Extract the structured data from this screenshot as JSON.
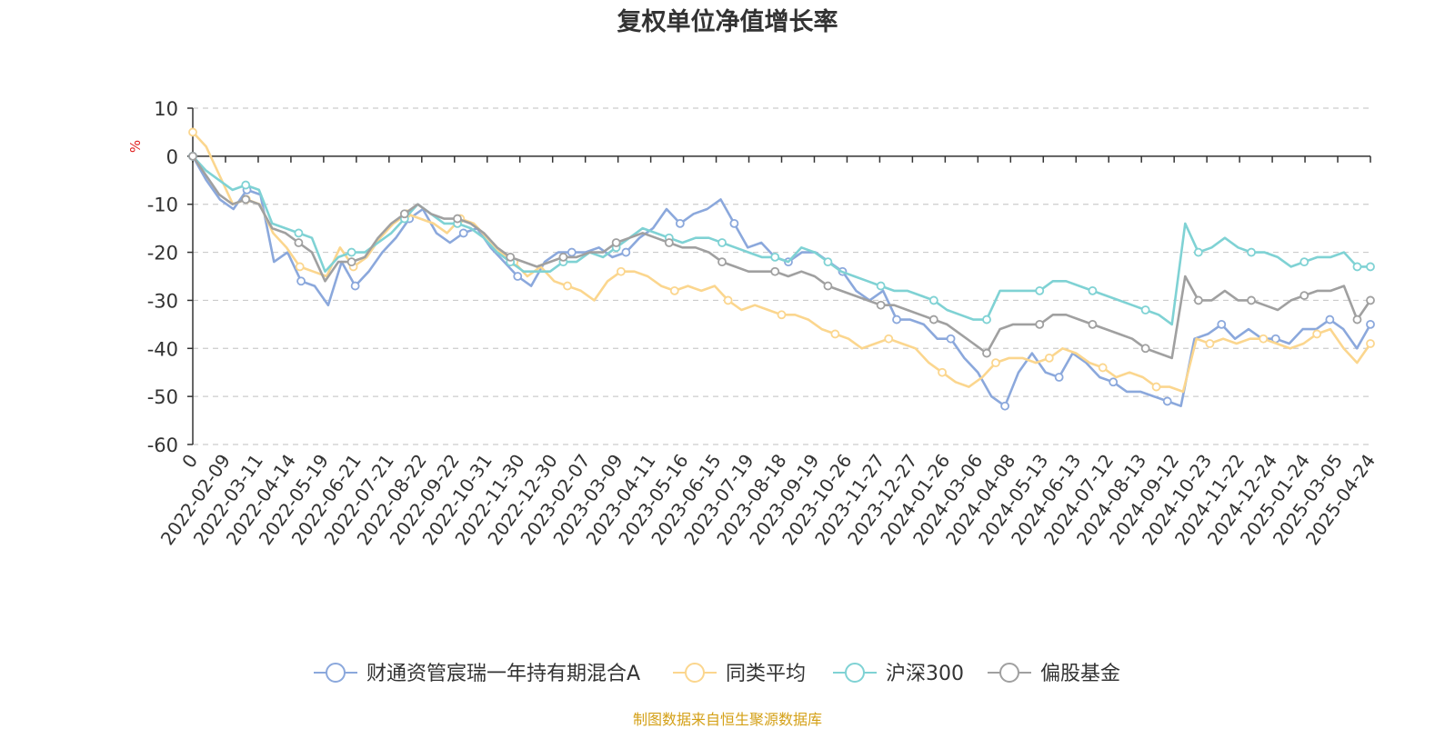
{
  "chart_data": {
    "type": "line",
    "title": "复权单位净值增长率",
    "ylabel": "%",
    "xlabel": "",
    "ylim": [
      -60,
      10
    ],
    "y_ticks": [
      "10",
      "0",
      "-10",
      "-20",
      "-30",
      "-40",
      "-50",
      "-60"
    ],
    "x_tick_labels": [
      "0",
      "2022-02-09",
      "2022-03-11",
      "2022-04-14",
      "2022-05-19",
      "2022-06-21",
      "2022-07-21",
      "2022-08-22",
      "2022-09-22",
      "2022-10-31",
      "2022-11-30",
      "2022-12-30",
      "2023-02-07",
      "2023-03-09",
      "2023-04-11",
      "2023-05-16",
      "2023-06-15",
      "2023-07-19",
      "2023-08-18",
      "2023-09-19",
      "2023-10-26",
      "2023-11-27",
      "2023-12-27",
      "2024-01-26",
      "2024-03-06",
      "2024-04-08",
      "2024-05-13",
      "2024-06-13",
      "2024-07-12",
      "2024-08-13",
      "2024-09-12",
      "2024-10-23",
      "2024-11-22",
      "2024-12-24",
      "2025-01-24",
      "2025-03-05",
      "2025-04-24"
    ],
    "grid": true,
    "legend_position": "bottom",
    "series": [
      {
        "name": "财通资管宸瑞一年持有期混合A",
        "color": "#8ba8dc",
        "values": [
          0,
          -5,
          -9,
          -11,
          -7,
          -8,
          -22,
          -20,
          -26,
          -27,
          -31,
          -22,
          -27,
          -24,
          -20,
          -17,
          -13,
          -11,
          -16,
          -18,
          -16,
          -15,
          -19,
          -22,
          -25,
          -27,
          -22,
          -20,
          -20,
          -20,
          -19,
          -21,
          -20,
          -17,
          -15,
          -11,
          -14,
          -12,
          -11,
          -9,
          -14,
          -19,
          -18,
          -21,
          -22,
          -20,
          -20,
          -22,
          -24,
          -28,
          -30,
          -28,
          -34,
          -34,
          -35,
          -38,
          -38,
          -42,
          -45,
          -50,
          -52,
          -45,
          -41,
          -45,
          -46,
          -41,
          -43,
          -46,
          -47,
          -49,
          -49,
          -50,
          -51,
          -52,
          -38,
          -37,
          -35,
          -38,
          -36,
          -38,
          -38,
          -39,
          -36,
          -36,
          -34,
          -36,
          -40,
          -35
        ]
      },
      {
        "name": "同类平均",
        "color": "#fbd68e",
        "values": [
          5,
          2,
          -4,
          -10,
          -9,
          -10,
          -16,
          -19,
          -23,
          -24,
          -25,
          -19,
          -23,
          -21,
          -17,
          -14,
          -12,
          -13,
          -14,
          -16,
          -13,
          -14,
          -17,
          -20,
          -22,
          -25,
          -23,
          -26,
          -27,
          -28,
          -30,
          -26,
          -24,
          -24,
          -25,
          -27,
          -28,
          -27,
          -28,
          -27,
          -30,
          -32,
          -31,
          -32,
          -33,
          -33,
          -34,
          -36,
          -37,
          -38,
          -40,
          -39,
          -38,
          -39,
          -40,
          -43,
          -45,
          -47,
          -48,
          -46,
          -43,
          -42,
          -42,
          -43,
          -42,
          -40,
          -41,
          -43,
          -44,
          -46,
          -45,
          -46,
          -48,
          -48,
          -49,
          -38,
          -39,
          -38,
          -39,
          -38,
          -38,
          -39,
          -40,
          -39,
          -37,
          -36,
          -40,
          -43,
          -39
        ]
      },
      {
        "name": "沪深300",
        "color": "#7fd2d4",
        "values": [
          0,
          -3,
          -5,
          -7,
          -6,
          -7,
          -14,
          -15,
          -16,
          -17,
          -24,
          -21,
          -20,
          -20,
          -18,
          -16,
          -13,
          -10,
          -12,
          -14,
          -14,
          -15,
          -17,
          -20,
          -22,
          -24,
          -24,
          -24,
          -22,
          -22,
          -20,
          -21,
          -19,
          -17,
          -15,
          -16,
          -17,
          -18,
          -17,
          -17,
          -18,
          -19,
          -20,
          -21,
          -21,
          -22,
          -19,
          -20,
          -22,
          -24,
          -25,
          -26,
          -27,
          -28,
          -28,
          -29,
          -30,
          -32,
          -33,
          -34,
          -34,
          -28,
          -28,
          -28,
          -28,
          -26,
          -26,
          -27,
          -28,
          -29,
          -30,
          -31,
          -32,
          -33,
          -35,
          -14,
          -20,
          -19,
          -17,
          -19,
          -20,
          -20,
          -21,
          -23,
          -22,
          -21,
          -21,
          -20,
          -23,
          -23
        ]
      },
      {
        "name": "偏股基金",
        "color": "#a0a0a0",
        "values": [
          0,
          -4,
          -8,
          -10,
          -9,
          -10,
          -15,
          -16,
          -18,
          -20,
          -26,
          -22,
          -22,
          -21,
          -17,
          -14,
          -12,
          -10,
          -12,
          -13,
          -13,
          -14,
          -16,
          -19,
          -21,
          -22,
          -23,
          -22,
          -21,
          -21,
          -20,
          -20,
          -18,
          -17,
          -16,
          -17,
          -18,
          -19,
          -19,
          -20,
          -22,
          -23,
          -24,
          -24,
          -24,
          -25,
          -24,
          -25,
          -27,
          -28,
          -29,
          -30,
          -31,
          -31,
          -32,
          -33,
          -34,
          -35,
          -37,
          -39,
          -41,
          -36,
          -35,
          -35,
          -35,
          -33,
          -33,
          -34,
          -35,
          -36,
          -37,
          -38,
          -40,
          -41,
          -42,
          -25,
          -30,
          -30,
          -28,
          -30,
          -30,
          -31,
          -32,
          -30,
          -29,
          -28,
          -28,
          -27,
          -34,
          -30
        ]
      }
    ]
  },
  "footer": {
    "source": "制图数据来自恒生聚源数据库"
  }
}
